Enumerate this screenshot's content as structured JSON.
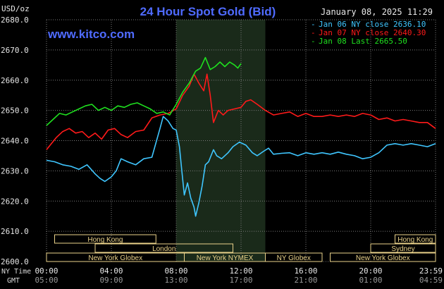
{
  "header": {
    "title": "24 Hour Spot Gold (Bid)",
    "date": "January 08, 2025 11:29",
    "watermark": "www.kitco.com",
    "yunit": "USD/oz"
  },
  "colors": {
    "title": "#4f6bff",
    "date": "#e8e8e8",
    "jan06": "#3fc6ff",
    "jan07": "#ff1a1a",
    "jan08": "#1fe01f",
    "grid": "#7a7a7a",
    "session": "#ead28a"
  },
  "legend": [
    {
      "key": "jan06",
      "text": "Jan 06 NY close 2636.10"
    },
    {
      "key": "jan07",
      "text": "Jan 07 NY close 2640.30"
    },
    {
      "key": "jan08",
      "text": "Jan 08 Last 2665.50"
    }
  ],
  "sessions": [
    {
      "label": "Hong Kong",
      "start": 0.5,
      "end": 6.75,
      "row": 0
    },
    {
      "label": "Hong Kong",
      "start": 21.5,
      "end": 24,
      "row": 0
    },
    {
      "label": "London",
      "start": 3,
      "end": 11.5,
      "row": 1
    },
    {
      "label": "Sydney",
      "start": 20,
      "end": 24,
      "row": 1
    },
    {
      "label": "New York Globex",
      "start": 0,
      "end": 8.5,
      "row": 2
    },
    {
      "label": "New York NYMEX",
      "start": 8.5,
      "end": 13.5,
      "row": 2
    },
    {
      "label": "NY Globex",
      "start": 13.5,
      "end": 17,
      "row": 2
    },
    {
      "label": "New York Globex",
      "start": 17.5,
      "end": 24,
      "row": 2
    }
  ],
  "axes": {
    "ny_label": "NY Time",
    "gmt_label": "GMT",
    "ny_ticks": [
      "00:00",
      "04:00",
      "08:00",
      "12:00",
      "16:00",
      "20:00",
      "23:59"
    ],
    "gmt_ticks": [
      "05:00",
      "09:00",
      "13:00",
      "17:00",
      "21:00",
      "01:00",
      "04:59"
    ],
    "y_ticks": [
      "2680.0",
      "2670.0",
      "2660.0",
      "2650.0",
      "2640.0",
      "2630.0",
      "2620.0",
      "2610.0",
      "2600.0"
    ]
  },
  "chart_data": {
    "type": "line",
    "title": "24 Hour Spot Gold (Bid)",
    "ylabel": "USD/oz",
    "xlabel": "NY Time",
    "xlim": [
      0,
      24
    ],
    "ylim": [
      2600,
      2680
    ],
    "grid": true,
    "legend_position": "top-right",
    "shaded_region": [
      8.0,
      13.5
    ],
    "series": [
      {
        "name": "Jan 06 NY close 2636.10",
        "color_key": "jan06",
        "points": [
          [
            0,
            2633.5
          ],
          [
            0.5,
            2633.0
          ],
          [
            1.0,
            2632.0
          ],
          [
            1.5,
            2631.5
          ],
          [
            2.0,
            2630.5
          ],
          [
            2.5,
            2632.0
          ],
          [
            3.0,
            2629.0
          ],
          [
            3.3,
            2627.5
          ],
          [
            3.6,
            2626.5
          ],
          [
            4.0,
            2628.0
          ],
          [
            4.3,
            2630.0
          ],
          [
            4.6,
            2634.0
          ],
          [
            5.0,
            2633.0
          ],
          [
            5.5,
            2632.0
          ],
          [
            6.0,
            2634.0
          ],
          [
            6.5,
            2634.5
          ],
          [
            7.0,
            2644.0
          ],
          [
            7.2,
            2648.0
          ],
          [
            7.5,
            2646.5
          ],
          [
            7.8,
            2644.0
          ],
          [
            8.0,
            2643.5
          ],
          [
            8.2,
            2638.0
          ],
          [
            8.35,
            2630.0
          ],
          [
            8.5,
            2622.0
          ],
          [
            8.7,
            2626.0
          ],
          [
            8.9,
            2621.0
          ],
          [
            9.1,
            2618.0
          ],
          [
            9.2,
            2615.0
          ],
          [
            9.4,
            2619.5
          ],
          [
            9.6,
            2625.0
          ],
          [
            9.8,
            2632.0
          ],
          [
            10.0,
            2633.0
          ],
          [
            10.3,
            2637.0
          ],
          [
            10.5,
            2635.0
          ],
          [
            10.8,
            2634.0
          ],
          [
            11.2,
            2636.0
          ],
          [
            11.5,
            2638.0
          ],
          [
            11.9,
            2639.5
          ],
          [
            12.3,
            2638.5
          ],
          [
            12.7,
            2636.0
          ],
          [
            13.0,
            2635.0
          ],
          [
            13.4,
            2636.5
          ],
          [
            13.7,
            2637.5
          ],
          [
            14.0,
            2635.5
          ],
          [
            14.5,
            2635.8
          ],
          [
            15.0,
            2636.0
          ],
          [
            15.5,
            2635.0
          ],
          [
            16.0,
            2636.0
          ],
          [
            16.5,
            2635.5
          ],
          [
            17.0,
            2636.0
          ],
          [
            17.5,
            2635.5
          ],
          [
            18.0,
            2636.2
          ],
          [
            18.5,
            2635.5
          ],
          [
            19.0,
            2635.0
          ],
          [
            19.5,
            2634.0
          ],
          [
            20.0,
            2634.5
          ],
          [
            20.5,
            2636.0
          ],
          [
            21.0,
            2638.5
          ],
          [
            21.5,
            2639.0
          ],
          [
            22.0,
            2638.5
          ],
          [
            22.5,
            2639.0
          ],
          [
            23.0,
            2638.5
          ],
          [
            23.5,
            2638.0
          ],
          [
            24.0,
            2639.0
          ]
        ]
      },
      {
        "name": "Jan 07 NY close 2640.30",
        "color_key": "jan07",
        "points": [
          [
            0,
            2637.0
          ],
          [
            0.3,
            2639.0
          ],
          [
            0.6,
            2641.0
          ],
          [
            1.0,
            2643.0
          ],
          [
            1.4,
            2644.0
          ],
          [
            1.8,
            2642.5
          ],
          [
            2.2,
            2643.0
          ],
          [
            2.6,
            2641.0
          ],
          [
            3.0,
            2642.5
          ],
          [
            3.4,
            2640.5
          ],
          [
            3.8,
            2643.5
          ],
          [
            4.2,
            2644.0
          ],
          [
            4.6,
            2642.0
          ],
          [
            5.0,
            2641.0
          ],
          [
            5.5,
            2643.0
          ],
          [
            6.0,
            2643.5
          ],
          [
            6.5,
            2647.5
          ],
          [
            7.0,
            2648.5
          ],
          [
            7.5,
            2649.0
          ],
          [
            8.0,
            2650.5
          ],
          [
            8.4,
            2655.0
          ],
          [
            8.8,
            2658.0
          ],
          [
            9.1,
            2662.0
          ],
          [
            9.4,
            2659.0
          ],
          [
            9.7,
            2656.5
          ],
          [
            9.9,
            2662.0
          ],
          [
            10.1,
            2655.0
          ],
          [
            10.3,
            2646.0
          ],
          [
            10.6,
            2650.0
          ],
          [
            10.9,
            2648.5
          ],
          [
            11.2,
            2650.0
          ],
          [
            11.6,
            2650.5
          ],
          [
            12.0,
            2651.0
          ],
          [
            12.3,
            2653.0
          ],
          [
            12.6,
            2653.5
          ],
          [
            13.0,
            2652.0
          ],
          [
            13.5,
            2650.0
          ],
          [
            14.0,
            2648.5
          ],
          [
            14.5,
            2649.0
          ],
          [
            15.0,
            2649.5
          ],
          [
            15.5,
            2648.0
          ],
          [
            16.0,
            2649.0
          ],
          [
            16.5,
            2648.0
          ],
          [
            17.0,
            2648.0
          ],
          [
            17.5,
            2648.5
          ],
          [
            18.0,
            2648.0
          ],
          [
            18.5,
            2648.5
          ],
          [
            19.0,
            2648.0
          ],
          [
            19.5,
            2649.0
          ],
          [
            20.0,
            2648.5
          ],
          [
            20.5,
            2647.0
          ],
          [
            21.0,
            2647.5
          ],
          [
            21.5,
            2646.5
          ],
          [
            22.0,
            2647.0
          ],
          [
            22.5,
            2646.5
          ],
          [
            23.0,
            2646.0
          ],
          [
            23.5,
            2646.0
          ],
          [
            24.0,
            2644.0
          ]
        ]
      },
      {
        "name": "Jan 08 Last 2665.50",
        "color_key": "jan08",
        "points": [
          [
            0,
            2645.0
          ],
          [
            0.4,
            2647.0
          ],
          [
            0.8,
            2649.0
          ],
          [
            1.2,
            2648.5
          ],
          [
            1.6,
            2649.5
          ],
          [
            2.0,
            2650.5
          ],
          [
            2.4,
            2651.5
          ],
          [
            2.8,
            2652.0
          ],
          [
            3.2,
            2650.0
          ],
          [
            3.6,
            2651.0
          ],
          [
            4.0,
            2650.0
          ],
          [
            4.4,
            2651.5
          ],
          [
            4.8,
            2651.0
          ],
          [
            5.2,
            2652.0
          ],
          [
            5.6,
            2652.5
          ],
          [
            6.0,
            2651.5
          ],
          [
            6.4,
            2650.5
          ],
          [
            6.8,
            2649.0
          ],
          [
            7.2,
            2649.5
          ],
          [
            7.6,
            2648.5
          ],
          [
            8.0,
            2652.0
          ],
          [
            8.4,
            2656.0
          ],
          [
            8.8,
            2659.0
          ],
          [
            9.2,
            2663.0
          ],
          [
            9.5,
            2664.0
          ],
          [
            9.8,
            2667.5
          ],
          [
            10.1,
            2663.5
          ],
          [
            10.4,
            2664.5
          ],
          [
            10.7,
            2666.0
          ],
          [
            11.0,
            2664.5
          ],
          [
            11.3,
            2666.0
          ],
          [
            11.6,
            2665.0
          ],
          [
            11.8,
            2664.0
          ],
          [
            12.0,
            2665.5
          ]
        ]
      }
    ]
  }
}
